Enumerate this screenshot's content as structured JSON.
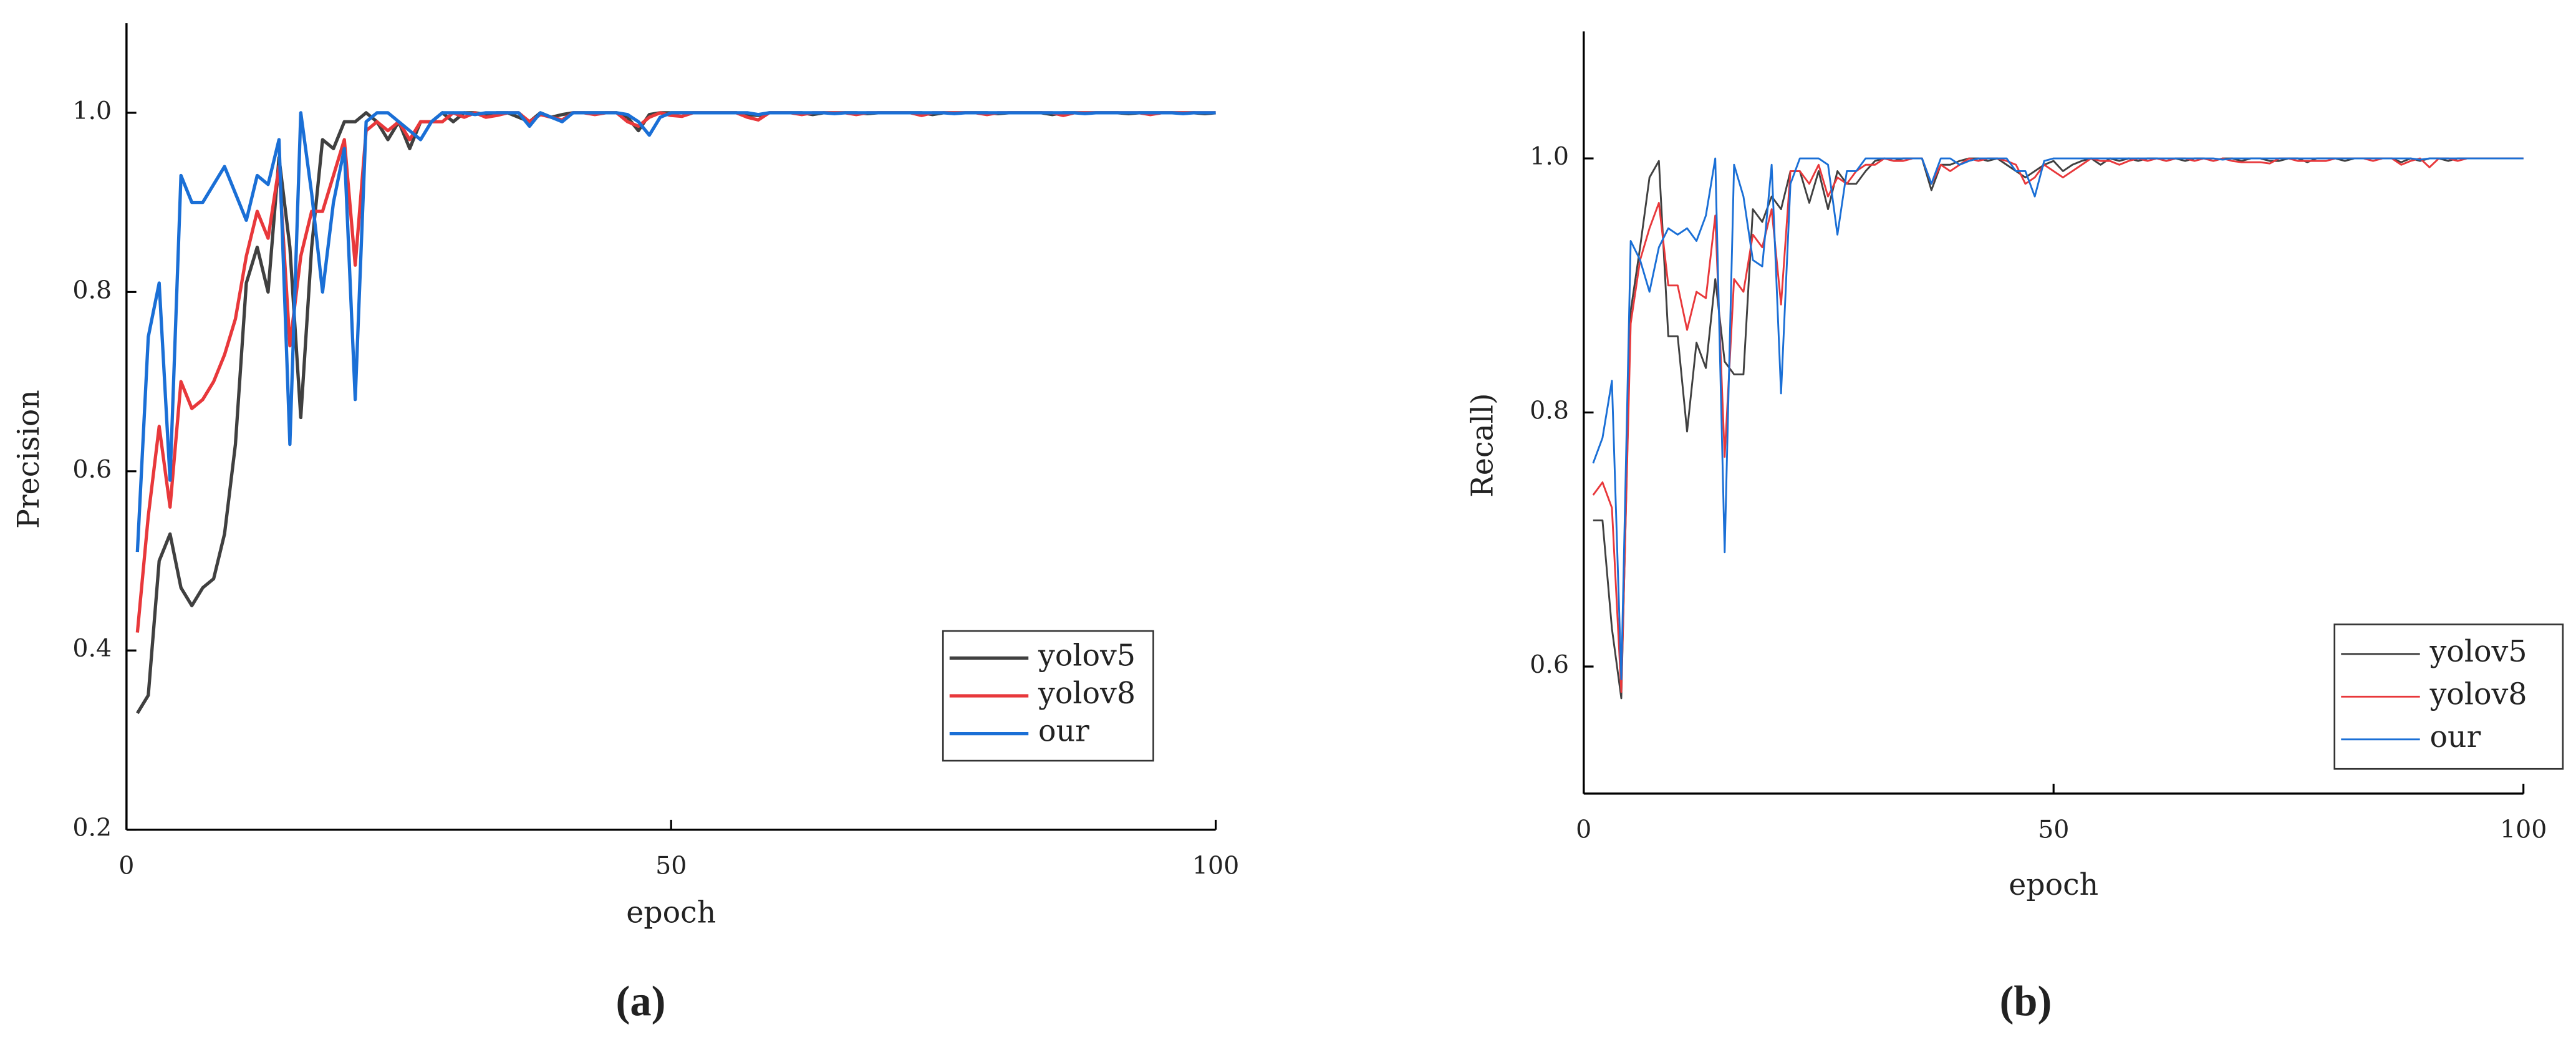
{
  "chart_data": [
    {
      "type": "line",
      "caption": "(a)",
      "x_label": "epoch",
      "y_label": "Precision",
      "x": [
        1,
        2,
        3,
        4,
        5,
        6,
        7,
        8,
        9,
        10,
        11,
        12,
        13,
        14,
        15,
        16,
        17,
        18,
        19,
        20,
        21,
        22,
        23,
        24,
        25,
        26,
        27,
        28,
        29,
        30,
        31,
        32,
        33,
        34,
        35,
        36,
        37,
        38,
        39,
        40,
        41,
        42,
        43,
        44,
        45,
        46,
        47,
        48,
        49,
        50,
        51,
        52,
        53,
        54,
        55,
        56,
        57,
        58,
        59,
        60,
        61,
        62,
        63,
        64,
        65,
        66,
        67,
        68,
        69,
        70,
        71,
        72,
        73,
        74,
        75,
        76,
        77,
        78,
        79,
        80,
        81,
        82,
        83,
        84,
        85,
        86,
        87,
        88,
        89,
        90,
        91,
        92,
        93,
        94,
        95,
        96,
        97,
        98,
        99,
        100
      ],
      "xlim": [
        0,
        100
      ],
      "xticks": [
        0,
        50,
        100
      ],
      "ylim": [
        0.2,
        1.1
      ],
      "yticks": [
        0.2,
        0.4,
        0.6,
        0.8,
        {
          "value": 1,
          "label": "1.0"
        }
      ],
      "legend": "lower right",
      "series": [
        {
          "name": "yolov5",
          "color": "#404040",
          "values": [
            0.33,
            0.35,
            0.5,
            0.53,
            0.47,
            0.45,
            0.47,
            0.48,
            0.53,
            0.63,
            0.81,
            0.85,
            0.8,
            0.95,
            0.85,
            0.66,
            0.85,
            0.97,
            0.96,
            0.99,
            0.99,
            1,
            0.99,
            0.97,
            0.99,
            0.96,
            0.99,
            0.99,
            1,
            0.99,
            1,
            1,
            0.998,
            1,
            1,
            0.995,
            0.99,
            1,
            0.995,
            0.998,
            1,
            1,
            1,
            1,
            1,
            0.995,
            0.98,
            0.998,
            1,
            1,
            1,
            1,
            1,
            1,
            1,
            1,
            0.998,
            0.997,
            1,
            1,
            1,
            1,
            0.998,
            1,
            1,
            1,
            1,
            0.999,
            1,
            1,
            1,
            1,
            1,
            0.998,
            1,
            1,
            1,
            1,
            1,
            0.999,
            1,
            1,
            1,
            1,
            0.998,
            1,
            1,
            1,
            1,
            1,
            1,
            0.999,
            1,
            1,
            1,
            1,
            1,
            1,
            0.999,
            1
          ]
        },
        {
          "name": "yolov8",
          "color": "#e8383b",
          "values": [
            0.42,
            0.55,
            0.65,
            0.56,
            0.7,
            0.67,
            0.68,
            0.7,
            0.73,
            0.77,
            0.84,
            0.89,
            0.86,
            0.94,
            0.74,
            0.84,
            0.89,
            0.89,
            0.93,
            0.97,
            0.83,
            0.98,
            0.99,
            0.98,
            0.99,
            0.97,
            0.99,
            0.99,
            0.99,
            1,
            0.995,
            1,
            0.995,
            0.997,
            1,
            1,
            0.99,
            0.998,
            0.995,
            0.992,
            1,
            1,
            0.998,
            1,
            1,
            0.99,
            0.985,
            0.995,
            1,
            0.997,
            0.996,
            1,
            1,
            1,
            1,
            1,
            0.995,
            0.992,
            1,
            1,
            1,
            0.998,
            1,
            1,
            1,
            1,
            0.998,
            1,
            1,
            1,
            1,
            1,
            0.997,
            1,
            1,
            1,
            1,
            1,
            0.998,
            1,
            1,
            1,
            1,
            1,
            1,
            0.997,
            1,
            1,
            1,
            1,
            1,
            1,
            1,
            0.998,
            1,
            1,
            1,
            1,
            1,
            1
          ]
        },
        {
          "name": "our",
          "color": "#1a6fd6",
          "values": [
            0.51,
            0.75,
            0.81,
            0.59,
            0.93,
            0.9,
            0.9,
            0.92,
            0.94,
            0.91,
            0.88,
            0.93,
            0.92,
            0.97,
            0.63,
            1,
            0.91,
            0.8,
            0.9,
            0.96,
            0.68,
            0.99,
            1,
            1,
            0.99,
            0.98,
            0.97,
            0.99,
            1,
            1,
            1,
            0.998,
            1,
            1,
            1,
            1,
            0.985,
            1,
            0.995,
            0.99,
            1,
            1,
            1,
            1,
            1,
            0.998,
            0.99,
            0.975,
            0.995,
            1,
            1,
            1,
            1,
            1,
            1,
            1,
            1,
            0.998,
            1,
            1,
            1,
            1,
            1,
            1,
            0.999,
            1,
            1,
            1,
            1,
            1,
            1,
            1,
            1,
            1,
            1,
            0.999,
            1,
            1,
            1,
            1,
            1,
            1,
            1,
            1,
            1,
            1,
            1,
            0.999,
            1,
            1,
            1,
            1,
            1,
            1,
            1,
            1,
            0.999,
            1,
            1,
            1
          ]
        }
      ]
    },
    {
      "type": "line",
      "caption": "(b)",
      "x_label": "epoch",
      "y_label": "Recall)",
      "x": [
        1,
        2,
        3,
        4,
        5,
        6,
        7,
        8,
        9,
        10,
        11,
        12,
        13,
        14,
        15,
        16,
        17,
        18,
        19,
        20,
        21,
        22,
        23,
        24,
        25,
        26,
        27,
        28,
        29,
        30,
        31,
        32,
        33,
        34,
        35,
        36,
        37,
        38,
        39,
        40,
        41,
        42,
        43,
        44,
        45,
        46,
        47,
        48,
        49,
        50,
        51,
        52,
        53,
        54,
        55,
        56,
        57,
        58,
        59,
        60,
        61,
        62,
        63,
        64,
        65,
        66,
        67,
        68,
        69,
        70,
        71,
        72,
        73,
        74,
        75,
        76,
        77,
        78,
        79,
        80,
        81,
        82,
        83,
        84,
        85,
        86,
        87,
        88,
        89,
        90,
        91,
        92,
        93,
        94,
        95,
        96,
        97,
        98,
        99,
        100
      ],
      "xlim": [
        0,
        100
      ],
      "xticks": [
        0,
        50,
        100
      ],
      "ylim": [
        0.5,
        1.1
      ],
      "yticks": [
        0.6,
        0.8,
        {
          "value": 1,
          "label": "1.0"
        }
      ],
      "legend": "lower right",
      "series": [
        {
          "name": "yolov5",
          "color": "#404040",
          "values": [
            0.715,
            0.715,
            0.63,
            0.575,
            0.88,
            0.93,
            0.985,
            0.998,
            0.86,
            0.86,
            0.785,
            0.855,
            0.835,
            0.905,
            0.84,
            0.83,
            0.83,
            0.96,
            0.95,
            0.97,
            0.96,
            0.99,
            0.99,
            0.965,
            0.99,
            0.96,
            0.99,
            0.98,
            0.98,
            0.99,
            0.998,
            1,
            0.998,
            1,
            1,
            1,
            0.975,
            0.995,
            0.995,
            0.998,
            1,
            1,
            0.998,
            1,
            0.995,
            0.99,
            0.985,
            0.99,
            0.995,
            0.998,
            0.99,
            0.995,
            0.998,
            1,
            0.995,
            1,
            0.998,
            1,
            0.998,
            1,
            1,
            0.998,
            1,
            0.998,
            1,
            1,
            0.998,
            1,
            1,
            0.998,
            1,
            1,
            0.998,
            0.998,
            1,
            1,
            0.997,
            1,
            1,
            1,
            0.998,
            1,
            1,
            1,
            1,
            1,
            0.997,
            1,
            0.998,
            1,
            1,
            0.998,
            1,
            1,
            1,
            1,
            1,
            1,
            1,
            1
          ]
        },
        {
          "name": "yolov8",
          "color": "#e8383b",
          "values": [
            0.735,
            0.745,
            0.725,
            0.58,
            0.87,
            0.92,
            0.945,
            0.965,
            0.9,
            0.9,
            0.865,
            0.895,
            0.89,
            0.955,
            0.765,
            0.905,
            0.895,
            0.94,
            0.93,
            0.96,
            0.885,
            0.99,
            0.99,
            0.98,
            0.995,
            0.97,
            0.985,
            0.98,
            0.99,
            0.995,
            0.995,
            1,
            0.998,
            0.998,
            1,
            1,
            0.98,
            0.995,
            0.99,
            0.995,
            1,
            0.998,
            1,
            1,
            0.998,
            0.995,
            0.98,
            0.985,
            0.995,
            0.99,
            0.985,
            0.99,
            0.995,
            1,
            0.998,
            0.998,
            0.995,
            0.998,
            1,
            0.998,
            1,
            0.998,
            1,
            1,
            0.998,
            1,
            0.998,
            1,
            0.998,
            0.997,
            0.997,
            0.997,
            0.996,
            1,
            1,
            0.998,
            0.998,
            0.998,
            0.998,
            1,
            1,
            1,
            1,
            0.998,
            1,
            1,
            0.995,
            0.998,
            1,
            0.993,
            1,
            1,
            0.998,
            1,
            1,
            1,
            1,
            1,
            1,
            1
          ]
        },
        {
          "name": "our",
          "color": "#1a6fd6",
          "values": [
            0.76,
            0.78,
            0.825,
            0.59,
            0.935,
            0.92,
            0.895,
            0.93,
            0.945,
            0.94,
            0.945,
            0.935,
            0.955,
            1,
            0.69,
            0.995,
            0.97,
            0.92,
            0.915,
            0.995,
            0.815,
            0.98,
            1,
            1,
            1,
            0.995,
            0.94,
            0.99,
            0.99,
            1,
            1,
            1,
            1,
            1,
            1,
            1,
            0.98,
            1,
            1,
            0.995,
            0.998,
            1,
            1,
            1,
            1,
            0.99,
            0.99,
            0.97,
            0.998,
            1,
            1,
            1,
            1,
            1,
            1,
            1,
            1,
            1,
            1,
            1,
            1,
            1,
            1,
            1,
            1,
            1,
            1,
            0.999,
            1,
            1,
            1,
            1,
            1,
            1,
            1,
            1,
            1,
            1,
            1,
            1,
            1,
            1,
            1,
            1,
            1,
            1,
            1,
            1,
            0.999,
            1,
            1,
            1,
            1,
            1,
            1,
            1,
            1,
            1,
            1,
            1
          ]
        }
      ]
    }
  ]
}
